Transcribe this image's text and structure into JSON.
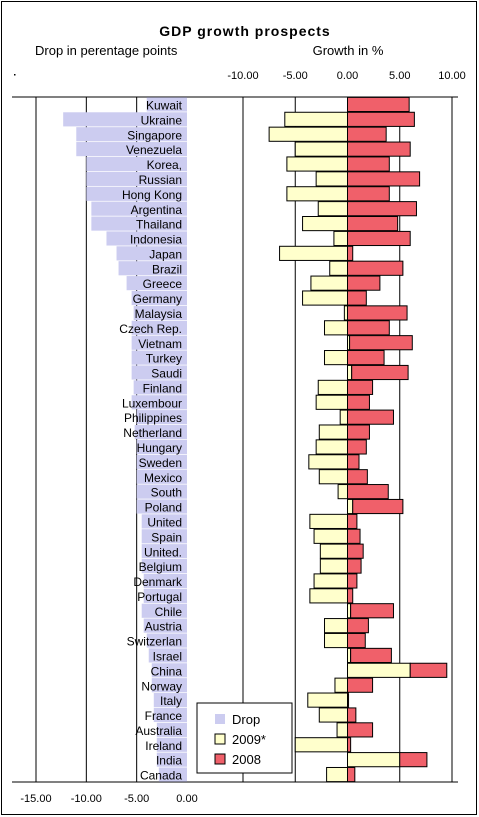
{
  "chart_data": {
    "type": "bar",
    "title": "GDP growth prospects",
    "subtitle_left": "Drop in perentage points",
    "subtitle_right": "Growth in %",
    "top_axis": {
      "ticks": [
        "-10.00",
        "-5.00",
        "0.00",
        "5.00",
        "10.00"
      ],
      "range": [
        -10,
        10
      ]
    },
    "bottom_axis": {
      "ticks": [
        "-15.00",
        "-10.00",
        "-5.00",
        "0.00"
      ],
      "range": [
        -15,
        0
      ]
    },
    "legend": {
      "position": "bottom-center",
      "entries": [
        "Drop",
        "2009*",
        "2008"
      ]
    },
    "colors": {
      "drop": "#ccccf0",
      "y2009": "#ffffcc",
      "y2008": "#f0606a",
      "outline": "#000000"
    },
    "categories": [
      "Kuwait",
      "Ukraine",
      "Singapore",
      "Venezuela",
      "Korea,",
      "Russian",
      "Hong Kong",
      "Argentina",
      "Thailand",
      "Indonesia",
      "Japan",
      "Brazil",
      "Greece",
      "Germany",
      "Malaysia",
      "Czech Rep.",
      "Vietnam",
      "Turkey",
      "Saudi",
      "Finland",
      "Luxembour",
      "Philippines",
      "Netherland",
      "Hungary",
      "Sweden",
      "Mexico",
      "South",
      "Poland",
      "United",
      "Spain",
      "United.",
      "Belgium",
      "Denmark",
      "Portugal",
      "Chile",
      "Austria",
      "Switzerlan",
      "Israel",
      "China",
      "Norway",
      "Italy",
      "France",
      "Australia",
      "Ireland",
      "India",
      "Canada"
    ],
    "series": [
      {
        "name": "Drop",
        "values": [
          -4.0,
          -12.3,
          -11.0,
          -11.0,
          -10.0,
          -10.0,
          -10.0,
          -9.5,
          -9.5,
          -8.0,
          -7.0,
          -6.8,
          -6.0,
          -5.5,
          -5.3,
          -5.5,
          -5.5,
          -5.5,
          -5.5,
          -5.3,
          -5.5,
          -5.0,
          -5.2,
          -5.0,
          -5.0,
          -5.0,
          -5.0,
          -5.0,
          -4.5,
          -4.5,
          -4.5,
          -4.5,
          -4.3,
          -4.3,
          -4.5,
          -4.3,
          -4.0,
          -3.8,
          -3.5,
          -3.5,
          -3.3,
          -3.3,
          -3.0,
          -3.0,
          -3.0,
          -2.8
        ]
      },
      {
        "name": "2009*",
        "values": [
          0.0,
          -6.0,
          -7.5,
          -5.0,
          -5.8,
          -3.0,
          -5.8,
          -2.8,
          -4.3,
          -1.3,
          -6.5,
          -1.7,
          -3.5,
          -4.3,
          -0.3,
          -2.2,
          0.2,
          -2.2,
          0.4,
          -2.8,
          -3.0,
          -0.7,
          -2.7,
          -3.0,
          -3.7,
          -2.7,
          -0.9,
          0.5,
          -3.6,
          -3.2,
          -2.6,
          -2.6,
          -3.2,
          -3.6,
          0.3,
          -2.2,
          -2.2,
          0.3,
          6.0,
          -1.2,
          -3.8,
          -2.7,
          -1.0,
          -5.0,
          5.0,
          -2.0
        ]
      },
      {
        "name": "2008",
        "values": [
          5.9,
          6.4,
          3.7,
          6.0,
          4.0,
          6.9,
          4.0,
          6.6,
          4.8,
          6.0,
          0.5,
          5.3,
          3.1,
          1.8,
          5.7,
          4.0,
          6.2,
          3.5,
          5.8,
          2.4,
          2.1,
          4.4,
          2.1,
          1.8,
          1.1,
          1.9,
          3.9,
          5.3,
          0.9,
          1.2,
          1.5,
          1.3,
          0.9,
          0.5,
          4.4,
          2.0,
          1.7,
          4.2,
          9.5,
          2.4,
          0.1,
          0.8,
          2.4,
          0.3,
          7.6,
          0.7
        ]
      }
    ]
  }
}
